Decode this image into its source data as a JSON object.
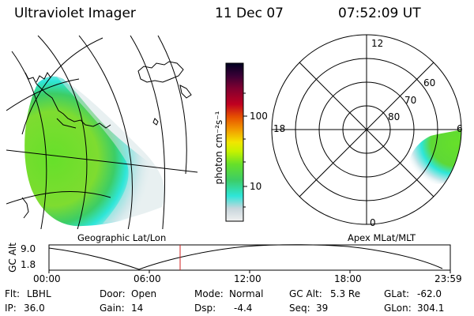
{
  "header": {
    "instrument": "Ultraviolet Imager",
    "date": "11 Dec 07",
    "time": "07:52:09 UT"
  },
  "left_panel": {
    "caption": "Geographic Lat/Lon"
  },
  "colorbar": {
    "unit_label": "photon cm⁻²s⁻¹",
    "ticks": [
      "100",
      "10"
    ],
    "scale": "log",
    "colors": [
      "#f2f2f2",
      "#c8d6dc",
      "#2ee6d8",
      "#3ccd66",
      "#66e02a",
      "#c4f200",
      "#f2e600",
      "#f29a00",
      "#e65000",
      "#c00020",
      "#800030",
      "#3a0035",
      "#000020"
    ]
  },
  "right_panel": {
    "caption": "Apex MLat/MLT",
    "mlt_labels": [
      "12",
      "18",
      "6",
      "0"
    ],
    "mlat_labels": [
      "60",
      "70",
      "80"
    ]
  },
  "timeline": {
    "ylabel": "GC Alt",
    "y_ticks": [
      "9.0",
      "1.8"
    ],
    "x_ticks": [
      "00:00",
      "06:00",
      "12:00",
      "18:00",
      "23:59"
    ],
    "current_time_marker": "07:52"
  },
  "status": {
    "row1": [
      {
        "label": "Flt:",
        "value": "LBHL"
      },
      {
        "label": "Door:",
        "value": "Open"
      },
      {
        "label": "Mode:",
        "value": "Normal"
      },
      {
        "label": "GC Alt:",
        "value": "5.3 Re"
      },
      {
        "label": "GLat:",
        "value": "-62.0"
      }
    ],
    "row2": [
      {
        "label": "IP:",
        "value": "36.0"
      },
      {
        "label": "Gain:",
        "value": "14"
      },
      {
        "label": "Dsp:",
        "value": "-4.4"
      },
      {
        "label": "Seq:",
        "value": "39"
      },
      {
        "label": "GLon:",
        "value": "304.1"
      }
    ]
  },
  "colors": {
    "aurora_green": "#66e02a",
    "aurora_cyan": "#2ee6d8",
    "marker_red": "#d02020"
  }
}
